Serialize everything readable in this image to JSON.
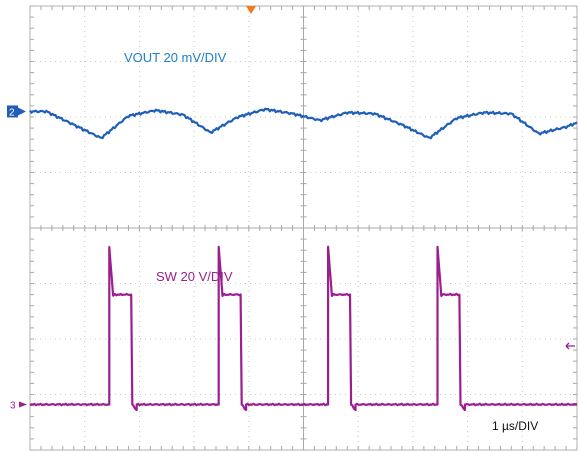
{
  "chart_data": {
    "type": "line",
    "title": "",
    "timebase_label": "1 µs/DIV",
    "x_divisions": 10,
    "y_divisions": 8,
    "xlim": [
      0,
      10
    ],
    "ylim": [
      0,
      8
    ],
    "grid": true,
    "trigger_marker_color": "#f07a1c",
    "series": [
      {
        "name": "VOUT 20 mV/DIV",
        "channel_marker": "2",
        "color": "#1f5fb8",
        "x": [
          0,
          0.3,
          0.8,
          1.3,
          1.8,
          2.3,
          2.8,
          3.3,
          3.8,
          4.3,
          4.8,
          5.3,
          5.8,
          6.3,
          6.8,
          7.3,
          7.8,
          8.3,
          8.8,
          9.3,
          9.8,
          10
        ],
        "y": [
          6.1,
          6.1,
          5.86,
          5.62,
          6.02,
          6.12,
          6.04,
          5.72,
          6.0,
          6.14,
          6.06,
          5.94,
          6.08,
          6.06,
          5.86,
          5.62,
          5.98,
          6.08,
          6.06,
          5.7,
          5.82,
          5.9
        ]
      },
      {
        "name": "SW 20 V/DIV",
        "channel_marker": "3",
        "color": "#9b1f8f",
        "x": [
          0,
          1.45,
          1.45,
          1.52,
          1.55,
          1.85,
          1.87,
          1.95,
          1.95,
          3.45,
          3.45,
          3.52,
          3.55,
          3.85,
          3.87,
          3.95,
          3.95,
          5.45,
          5.45,
          5.52,
          5.55,
          5.85,
          5.87,
          5.95,
          5.95,
          7.45,
          7.45,
          7.52,
          7.55,
          7.85,
          7.87,
          7.95,
          7.95,
          10
        ],
        "y": [
          0.82,
          0.82,
          3.65,
          2.78,
          2.8,
          2.8,
          0.82,
          0.72,
          0.82,
          0.82,
          3.65,
          2.78,
          2.8,
          2.8,
          0.82,
          0.72,
          0.82,
          0.82,
          3.65,
          2.78,
          2.8,
          2.8,
          0.82,
          0.72,
          0.82,
          0.82,
          3.65,
          2.78,
          2.8,
          2.8,
          0.82,
          0.72,
          0.82,
          0.82
        ]
      }
    ]
  }
}
